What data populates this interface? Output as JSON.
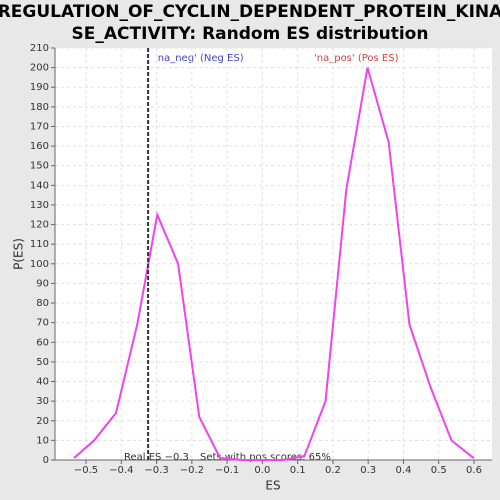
{
  "chart_data": {
    "type": "line",
    "title_lines": [
      "REGULATION_OF_CYCLIN_DEPENDENT_PROTEIN_KINA",
      "SE_ACTIVITY: Random ES distribution"
    ],
    "x_label": "ES",
    "y_label": "P(ES)",
    "x": [
      -0.534,
      -0.477,
      -0.415,
      -0.355,
      -0.298,
      -0.239,
      -0.179,
      -0.12,
      -0.06,
      0.0,
      0.06,
      0.119,
      0.179,
      0.238,
      0.298,
      0.358,
      0.417,
      0.477,
      0.536,
      0.599
    ],
    "series": [
      {
        "name": "P(ES)",
        "color": "#ee44ee",
        "values": [
          1,
          10,
          24,
          69,
          125,
          100,
          22,
          1,
          0,
          0,
          0,
          2,
          30,
          138,
          200,
          162,
          69,
          37,
          10,
          1
        ]
      }
    ],
    "xlim": [
      -0.588,
      0.651
    ],
    "ylim": [
      0,
      210
    ],
    "xticks": [
      {
        "value": -0.5,
        "label": "−0.5"
      },
      {
        "value": -0.4,
        "label": "−0.4"
      },
      {
        "value": -0.3,
        "label": "−0.3"
      },
      {
        "value": -0.2,
        "label": "−0.2"
      },
      {
        "value": -0.1,
        "label": "−0.1"
      },
      {
        "value": 0.0,
        "label": "0.0"
      },
      0.1,
      0.2,
      0.3,
      0.4,
      0.5,
      0.6
    ],
    "yticks": [
      0,
      10,
      20,
      30,
      40,
      50,
      60,
      70,
      80,
      90,
      100,
      110,
      120,
      130,
      140,
      150,
      160,
      170,
      180,
      190,
      200,
      210
    ],
    "grid": true,
    "real_es": {
      "value": -0.324,
      "label": "Real ES −0.3"
    },
    "pos_scores_label": "Sets with pos scores: 65%",
    "neg_label": "'na_neg' (Neg ES)",
    "pos_label": "'na_pos' (Pos ES)"
  }
}
